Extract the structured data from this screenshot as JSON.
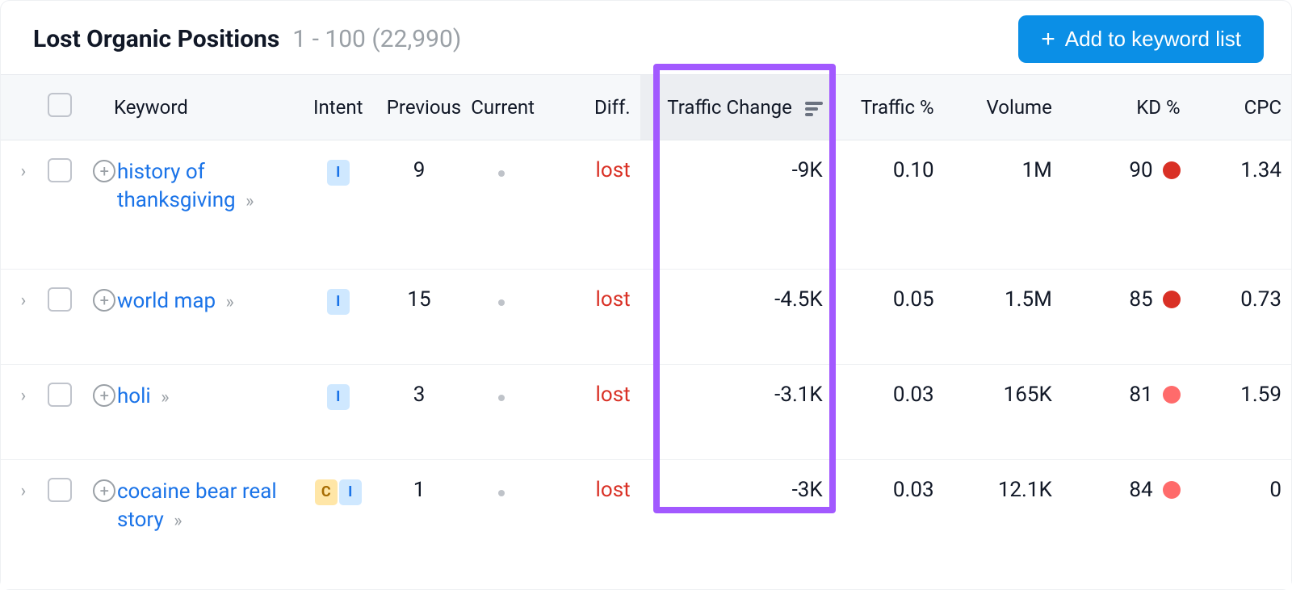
{
  "header": {
    "title": "Lost Organic Positions",
    "range": "1 - 100 (22,990)",
    "add_button_label": "Add to keyword list"
  },
  "columns": {
    "keyword": "Keyword",
    "intent": "Intent",
    "previous": "Previous",
    "current": "Current",
    "diff": "Diff.",
    "traffic_change": "Traffic Change",
    "traffic_pct": "Traffic %",
    "volume": "Volume",
    "kd": "KD %",
    "cpc": "CPC"
  },
  "colors": {
    "accent_blue": "#0b8fe6",
    "link_blue": "#1a73e8",
    "highlight_border": "#a259ff",
    "diff_lost": "#d93025",
    "kd_red_dark": "#d93025",
    "kd_red_light": "#ff6b6b",
    "intent_I_bg": "#cfe8ff",
    "intent_I_fg": "#1a73e8",
    "intent_C_bg": "#ffe6a7",
    "intent_C_fg": "#a66b00"
  },
  "rows": [
    {
      "keyword_html": "history of thanksgiving",
      "intents": [
        "I"
      ],
      "previous": "9",
      "current": "dot",
      "diff": "lost",
      "traffic_change": "-9K",
      "traffic_pct": "0.10",
      "volume": "1M",
      "kd": "90",
      "kd_color": "#d93025",
      "cpc": "1.34",
      "tall": true
    },
    {
      "keyword_html": "world map",
      "intents": [
        "I"
      ],
      "previous": "15",
      "current": "dot",
      "diff": "lost",
      "traffic_change": "-4.5K",
      "traffic_pct": "0.05",
      "volume": "1.5M",
      "kd": "85",
      "kd_color": "#d93025",
      "cpc": "0.73",
      "tall": false
    },
    {
      "keyword_html": "holi",
      "intents": [
        "I"
      ],
      "previous": "3",
      "current": "dot",
      "diff": "lost",
      "traffic_change": "-3.1K",
      "traffic_pct": "0.03",
      "volume": "165K",
      "kd": "81",
      "kd_color": "#ff6b6b",
      "cpc": "1.59",
      "tall": false
    },
    {
      "keyword_html": "cocaine bear real story",
      "intents": [
        "C",
        "I"
      ],
      "previous": "1",
      "current": "dot",
      "diff": "lost",
      "traffic_change": "-3K",
      "traffic_pct": "0.03",
      "volume": "12.1K",
      "kd": "84",
      "kd_color": "#ff6b6b",
      "cpc": "0",
      "tall": true
    }
  ]
}
